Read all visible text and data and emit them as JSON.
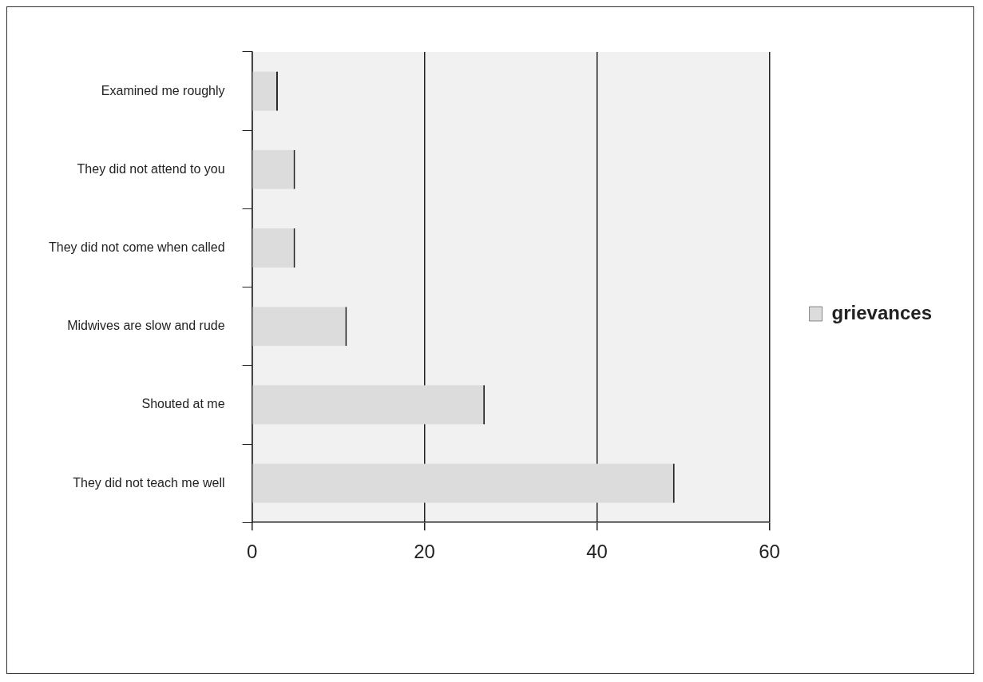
{
  "chart_data": {
    "type": "bar",
    "orientation": "horizontal",
    "categories": [
      "Examined me roughly",
      "They did not attend to you",
      "They did not come when called",
      "Midwives are slow and rude",
      "Shouted at me",
      "They did not teach me well"
    ],
    "series": [
      {
        "name": "grievances",
        "color": "#dcdcdc",
        "values": [
          3,
          5,
          5,
          11,
          27,
          49
        ]
      }
    ],
    "xlim": [
      0,
      60
    ],
    "xticks": [
      0,
      20,
      40,
      60
    ],
    "grid": "x",
    "legend": "right"
  }
}
